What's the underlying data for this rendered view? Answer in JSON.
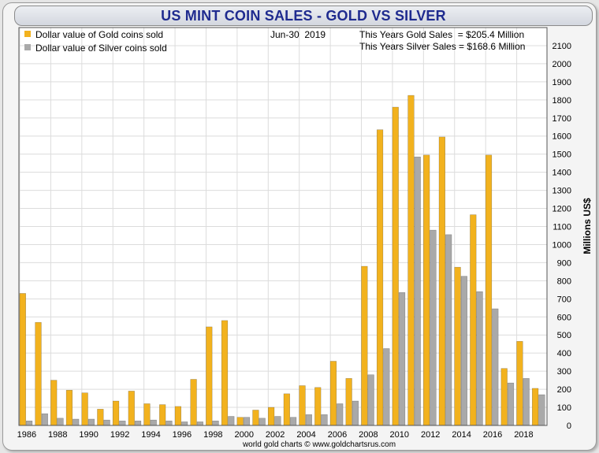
{
  "title": "US MINT COIN SALES - GOLD VS SILVER",
  "date_text": "Jun-30  2019",
  "summary": {
    "gold": "This Years Gold Sales  = $205.4 Million",
    "silver": "This Years Silver Sales = $168.6 Million"
  },
  "footer": "world gold charts © www.goldchartsrus.com",
  "colors": {
    "gold": "#f2b21e",
    "silver": "#a9a9a9",
    "grid": "#dcdcdc"
  },
  "chart_data": {
    "type": "bar",
    "categories": [
      "1986",
      "1987",
      "1988",
      "1989",
      "1990",
      "1991",
      "1992",
      "1993",
      "1994",
      "1995",
      "1996",
      "1997",
      "1998",
      "1999",
      "2000",
      "2001",
      "2002",
      "2003",
      "2004",
      "2005",
      "2006",
      "2007",
      "2008",
      "2009",
      "2010",
      "2011",
      "2012",
      "2013",
      "2014",
      "2015",
      "2016",
      "2017",
      "2018",
      "2019"
    ],
    "x_tick_labels": [
      "1986",
      "1988",
      "1990",
      "1992",
      "1994",
      "1996",
      "1998",
      "2000",
      "2002",
      "2004",
      "2006",
      "2008",
      "2010",
      "2012",
      "2014",
      "2016",
      "2018"
    ],
    "series": [
      {
        "name": "Dollar value of Gold coins sold",
        "values": [
          730,
          570,
          250,
          195,
          180,
          90,
          135,
          190,
          120,
          115,
          105,
          255,
          545,
          580,
          45,
          85,
          100,
          175,
          220,
          210,
          355,
          260,
          880,
          1635,
          1760,
          1825,
          1495,
          1595,
          875,
          1165,
          1495,
          315,
          465,
          205
        ]
      },
      {
        "name": "Dollar value of Silver coins sold",
        "values": [
          25,
          65,
          40,
          35,
          35,
          30,
          25,
          25,
          30,
          25,
          20,
          20,
          25,
          50,
          45,
          40,
          50,
          45,
          60,
          60,
          120,
          135,
          280,
          425,
          735,
          1485,
          1080,
          1055,
          825,
          740,
          645,
          235,
          260,
          170
        ]
      }
    ],
    "ylabel": "Millions US$",
    "ylim": [
      0,
      2200
    ],
    "y_ticks": [
      0,
      100,
      200,
      300,
      400,
      500,
      600,
      700,
      800,
      900,
      1000,
      1100,
      1200,
      1300,
      1400,
      1500,
      1600,
      1700,
      1800,
      1900,
      2000,
      2100
    ],
    "grid": true,
    "legend_position": "top-left",
    "y_axis_side": "right"
  }
}
